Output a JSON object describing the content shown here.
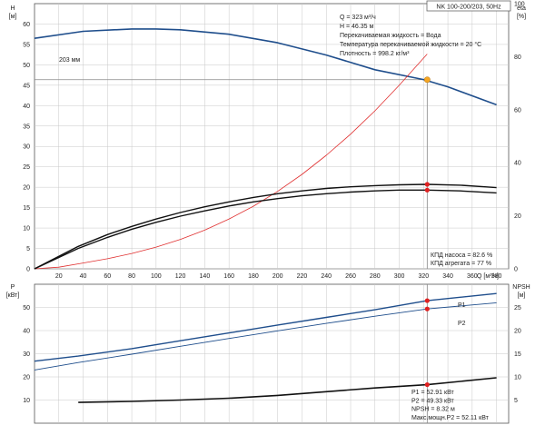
{
  "pump_title": "NK 100-200/203, 50Hz",
  "chart_data": [
    {
      "type": "line",
      "panel": "top",
      "x_axis": {
        "label": "Q [м³/ч]",
        "range": [
          0,
          390
        ],
        "ticks": [
          20,
          40,
          60,
          80,
          100,
          120,
          140,
          160,
          180,
          200,
          220,
          240,
          260,
          280,
          300,
          320,
          340,
          360,
          380
        ]
      },
      "y_left": {
        "label_top": "H",
        "label_unit": "[м]",
        "range": [
          0,
          65
        ],
        "ticks": [
          0,
          5,
          10,
          15,
          20,
          25,
          30,
          35,
          40,
          45,
          50,
          55,
          60
        ]
      },
      "y_right": {
        "label_top": "eta",
        "label_unit": "[%]",
        "range": [
          0,
          100
        ],
        "ticks": [
          0,
          20,
          40,
          60,
          80,
          100
        ]
      },
      "grid": true,
      "series": [
        {
          "name": "203 мм",
          "axis": "left",
          "color": "#1f4e8c",
          "width": 1.6,
          "x": [
            0,
            40,
            80,
            100,
            120,
            160,
            200,
            240,
            280,
            320,
            340,
            380
          ],
          "y": [
            56.5,
            58.2,
            58.8,
            58.8,
            58.6,
            57.5,
            55.4,
            52.4,
            48.8,
            46.4,
            44.6,
            40.2
          ]
        },
        {
          "axis": "right",
          "color": "#e03030",
          "width": 0.8,
          "x": [
            0,
            20,
            40,
            60,
            80,
            100,
            120,
            140,
            160,
            180,
            200,
            220,
            240,
            260,
            280,
            300,
            323
          ],
          "y": [
            0,
            0.6,
            2.2,
            3.8,
            5.8,
            8.2,
            11.1,
            14.6,
            18.8,
            23.6,
            29.2,
            35.6,
            42.8,
            50.8,
            59.6,
            69.2,
            81.0
          ]
        },
        {
          "axis": "left",
          "color": "#111111",
          "width": 1.4,
          "x": [
            0,
            36,
            60,
            80,
            100,
            120,
            140,
            160,
            180,
            200,
            220,
            240,
            260,
            280,
            300,
            323,
            350,
            380
          ],
          "y": [
            0,
            5.5,
            8.4,
            10.4,
            12.2,
            13.8,
            15.2,
            16.4,
            17.5,
            18.4,
            19.1,
            19.7,
            20.1,
            20.4,
            20.6,
            20.7,
            20.5,
            19.9
          ]
        },
        {
          "axis": "left",
          "color": "#111111",
          "width": 1.4,
          "x": [
            0,
            36,
            60,
            80,
            100,
            120,
            140,
            160,
            180,
            200,
            220,
            240,
            260,
            280,
            300,
            323,
            350,
            380
          ],
          "y": [
            0,
            5.0,
            7.7,
            9.7,
            11.4,
            12.9,
            14.2,
            15.4,
            16.4,
            17.2,
            17.9,
            18.4,
            18.8,
            19.1,
            19.3,
            19.3,
            19.1,
            18.6
          ]
        }
      ],
      "operating_point": {
        "x": 323,
        "y": 46.35,
        "color": "#f5a623"
      },
      "markers": [
        {
          "x": 323,
          "y": 20.7,
          "color": "#e02020"
        },
        {
          "x": 323,
          "y": 19.3,
          "color": "#e02020"
        }
      ],
      "info_lines": [
        "Q = 323 м³/ч",
        "H = 46.35 м",
        "Перекачиваемая жидкость = Вода",
        "Температура перекачиваемой жидкости = 20 °C",
        "Плотность = 998.2 кг/м³"
      ],
      "efficiency_lines": [
        "КПД насоса = 82.6 %",
        "КПД агрегата = 77 %"
      ]
    },
    {
      "type": "line",
      "panel": "bottom",
      "x_axis": {
        "range": [
          0,
          390
        ]
      },
      "y_left": {
        "label_top": "P",
        "label_unit": "[кВт]",
        "range": [
          0,
          60
        ],
        "ticks": [
          10,
          20,
          30,
          40,
          50
        ]
      },
      "y_right": {
        "label_top": "NPSH",
        "label_unit": "[м]",
        "range": [
          0,
          30
        ],
        "ticks": [
          5,
          10,
          15,
          20,
          25
        ]
      },
      "grid": true,
      "series": [
        {
          "name": "P1",
          "axis": "left",
          "color": "#1f4e8c",
          "width": 1.4,
          "x": [
            0,
            36,
            80,
            120,
            160,
            200,
            240,
            280,
            323,
            380
          ],
          "y": [
            26.8,
            29.0,
            32.2,
            35.6,
            39.0,
            42.4,
            45.7,
            49.0,
            52.91,
            56.0
          ]
        },
        {
          "name": "P2",
          "axis": "left",
          "color": "#1f4e8c",
          "width": 0.9,
          "x": [
            0,
            36,
            80,
            120,
            160,
            200,
            240,
            280,
            323,
            380
          ],
          "y": [
            23.0,
            26.2,
            29.8,
            33.2,
            36.6,
            39.9,
            43.1,
            46.2,
            49.33,
            52.0
          ]
        },
        {
          "axis": "right",
          "color": "#111111",
          "width": 1.6,
          "x": [
            36,
            80,
            120,
            160,
            200,
            240,
            280,
            323,
            380
          ],
          "y": [
            4.5,
            4.7,
            5.0,
            5.4,
            6.0,
            6.8,
            7.6,
            8.32,
            9.8
          ]
        }
      ],
      "markers": [
        {
          "x": 323,
          "y": 52.91,
          "axis": "left",
          "color": "#e02020"
        },
        {
          "x": 323,
          "y": 49.33,
          "axis": "left",
          "color": "#e02020"
        },
        {
          "x": 323,
          "y": 8.32,
          "axis": "right",
          "color": "#e02020"
        }
      ],
      "info_lines": [
        "P1 = 52.91 кВт",
        "P2 = 49.33 кВт",
        "NPSH = 8.32 м",
        "Макс.мощн.P2 = 52.11 кВт"
      ]
    }
  ]
}
